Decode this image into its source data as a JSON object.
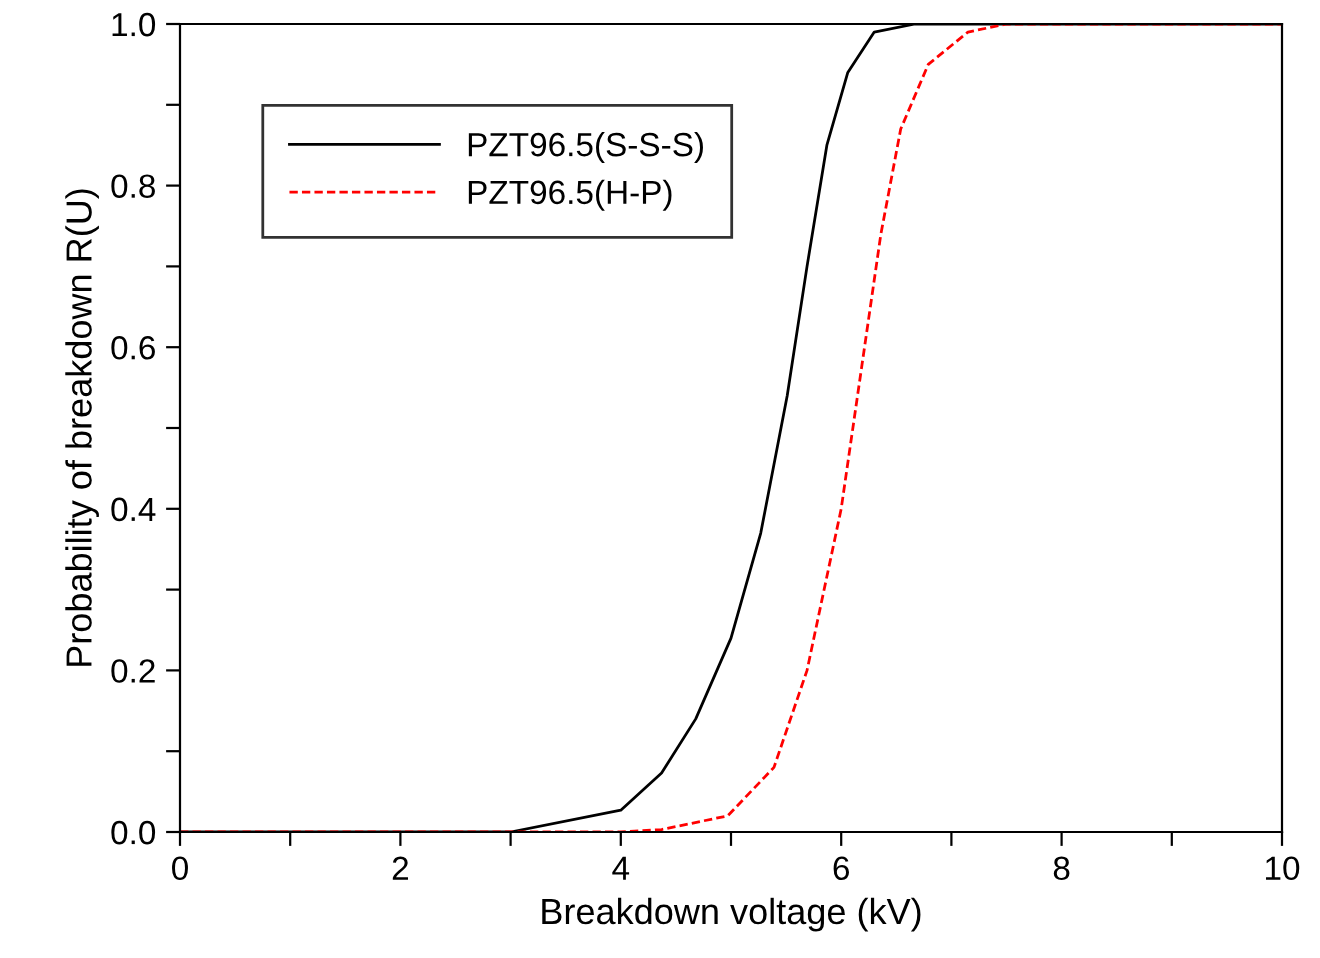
{
  "chart_data": {
    "type": "line",
    "xlabel": "Breakdown voltage (kV)",
    "ylabel": "Probability of breakdown R(U)",
    "xlim": [
      0,
      10
    ],
    "ylim": [
      0,
      1.0
    ],
    "xticks": [
      0,
      {
        "value": 1,
        "label": null
      },
      2,
      {
        "value": 3,
        "label": null
      },
      4,
      {
        "value": 5,
        "label": null
      },
      6,
      {
        "value": 7,
        "label": null
      },
      8,
      {
        "value": 9,
        "label": null
      },
      10
    ],
    "yticks": [
      {
        "value": 0,
        "label": "0.0"
      },
      {
        "value": 0.1,
        "label": null
      },
      0.2,
      {
        "value": 0.3,
        "label": null
      },
      0.4,
      {
        "value": 0.5,
        "label": null
      },
      0.6,
      {
        "value": 0.7,
        "label": null
      },
      0.8,
      {
        "value": 0.9,
        "label": null
      },
      {
        "value": 1.0,
        "label": "1.0"
      }
    ],
    "grid": false,
    "legend": "top left",
    "marker": "none",
    "series": [
      {
        "name": "PZT96.5(S-S-S)",
        "color": "#000000",
        "line_style": "solid",
        "x": [
          0,
          3,
          4,
          4.37,
          4.68,
          5.0,
          5.27,
          5.51,
          5.69,
          5.87,
          6.06,
          6.3,
          6.67,
          10
        ],
        "values": [
          0,
          0,
          0.027,
          0.073,
          0.14,
          0.24,
          0.37,
          0.54,
          0.7,
          0.85,
          0.94,
          0.99,
          1,
          1
        ]
      },
      {
        "name": "PZT96.5(H-P)",
        "color": "#ff0000",
        "line_style": "dashed",
        "x": [
          0,
          4,
          4.37,
          4.97,
          5.39,
          5.69,
          6.0,
          6.18,
          6.36,
          6.54,
          6.79,
          7.15,
          7.5,
          10
        ],
        "values": [
          0,
          0,
          0.003,
          0.02,
          0.08,
          0.2,
          0.4,
          0.57,
          0.74,
          0.87,
          0.95,
          0.99,
          1,
          1
        ]
      }
    ]
  }
}
